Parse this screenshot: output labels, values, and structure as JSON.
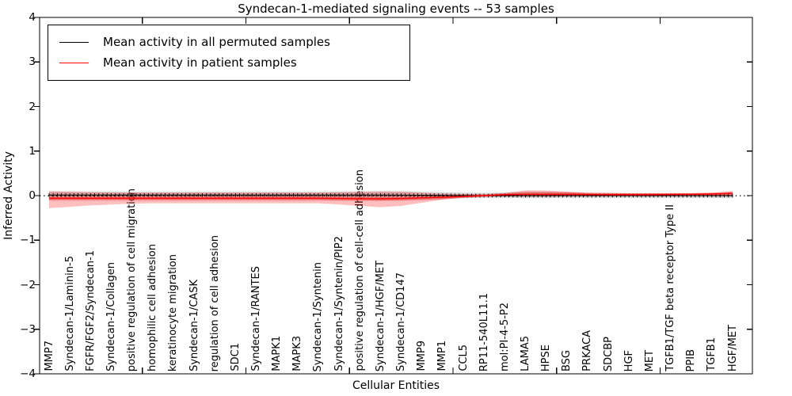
{
  "title": "Syndecan-1-mediated signaling events -- 53 samples",
  "axes": {
    "xlabel": "Cellular Entities",
    "ylabel": "Inferred Activity"
  },
  "legend": {
    "position": "upper left",
    "items": [
      {
        "label": "Mean activity in all permuted samples",
        "color": "#000000"
      },
      {
        "label": "Mean activity in patient samples",
        "color": "#ff0000"
      }
    ]
  },
  "chart_data": {
    "type": "line",
    "title": "Syndecan-1-mediated signaling events -- 53 samples",
    "xlabel": "Cellular Entities",
    "ylabel": "Inferred Activity",
    "ylim": [
      -4,
      4
    ],
    "yticks": [
      4,
      3,
      2,
      1,
      0,
      -1,
      -2,
      -3,
      -4
    ],
    "grid": false,
    "zero_line_style": "dotted",
    "entities": [
      "MMP7",
      "Syndecan-1/Laminin-5",
      "FGFR/FGF2/Syndecan-1",
      "Syndecan-1/Collagen",
      "positive regulation of cell migration",
      "homophilic cell adhesion",
      "keratinocyte migration",
      "Syndecan-1/CASK",
      "regulation of cell adhesion",
      "SDC1",
      "Syndecan-1/RANTES",
      "MAPK1",
      "MAPK3",
      "Syndecan-1/Syntenin",
      "Syndecan-1/Syntenin/PIP2",
      "positive regulation of cell-cell adhesion",
      "Syndecan-1/HGF/MET",
      "Syndecan-1/CD147",
      "MMP9",
      "MMP1",
      "CCL5",
      "RP11-540L11.1",
      "mol:PI-4-5-P2",
      "LAMA5",
      "HPSE",
      "BSG",
      "PRKACA",
      "SDCBP",
      "HGF",
      "MET",
      "TGFB1/TGF beta receptor Type II",
      "PPIB",
      "TGFB1",
      "HGF/MET"
    ],
    "series": [
      {
        "name": "Mean activity in all permuted samples",
        "color": "#000000",
        "values": [
          0.012,
          0.012,
          0.012,
          0.012,
          0.012,
          0.012,
          0.012,
          0.012,
          0.012,
          0.012,
          0.012,
          0.012,
          0.012,
          0.012,
          0.012,
          0.012,
          0.012,
          0.01,
          0.008,
          0.005,
          0.002,
          0.0,
          0.0,
          0.0,
          0.0,
          0.0,
          0.0,
          0.0,
          0.0,
          0.0,
          0.0,
          0.0,
          0.0,
          0.0
        ]
      },
      {
        "name": "Mean activity in patient samples",
        "color": "#ff0000",
        "values": [
          -0.06,
          -0.06,
          -0.06,
          -0.06,
          -0.06,
          -0.06,
          -0.06,
          -0.06,
          -0.06,
          -0.06,
          -0.06,
          -0.06,
          -0.06,
          -0.06,
          -0.065,
          -0.07,
          -0.07,
          -0.065,
          -0.05,
          -0.035,
          -0.02,
          0.0,
          0.02,
          0.03,
          0.03,
          0.03,
          0.025,
          0.02,
          0.02,
          0.02,
          0.025,
          0.03,
          0.035,
          0.05
        ]
      }
    ],
    "bands": [
      {
        "name": "permuted-samples-range",
        "color": "#808080",
        "opacity": 0.35,
        "low": [
          -0.095,
          -0.093,
          -0.09,
          -0.09,
          -0.09,
          -0.09,
          -0.09,
          -0.09,
          -0.09,
          -0.09,
          -0.09,
          -0.09,
          -0.09,
          -0.09,
          -0.095,
          -0.1,
          -0.105,
          -0.1,
          -0.09,
          -0.075,
          -0.06,
          -0.05,
          -0.05,
          -0.055,
          -0.055,
          -0.05,
          -0.05,
          -0.05,
          -0.05,
          -0.05,
          -0.05,
          -0.05,
          -0.05,
          -0.055
        ],
        "high": [
          0.095,
          0.093,
          0.09,
          0.088,
          0.085,
          0.085,
          0.085,
          0.085,
          0.085,
          0.085,
          0.085,
          0.085,
          0.085,
          0.085,
          0.09,
          0.095,
          0.1,
          0.095,
          0.085,
          0.075,
          0.065,
          0.06,
          0.07,
          0.09,
          0.09,
          0.08,
          0.06,
          0.055,
          0.05,
          0.05,
          0.05,
          0.05,
          0.055,
          0.065
        ]
      },
      {
        "name": "patient-samples-range",
        "color": "#ff0000",
        "opacity": 0.25,
        "low": [
          -0.28,
          -0.25,
          -0.22,
          -0.2,
          -0.18,
          -0.17,
          -0.17,
          -0.17,
          -0.17,
          -0.17,
          -0.17,
          -0.17,
          -0.17,
          -0.17,
          -0.2,
          -0.23,
          -0.26,
          -0.23,
          -0.16,
          -0.09,
          -0.045,
          -0.025,
          -0.015,
          -0.02,
          -0.02,
          -0.015,
          -0.01,
          -0.01,
          -0.01,
          -0.01,
          -0.01,
          -0.01,
          -0.01,
          -0.015
        ],
        "high": [
          0.095,
          0.085,
          0.075,
          0.07,
          0.07,
          0.07,
          0.07,
          0.07,
          0.07,
          0.07,
          0.07,
          0.07,
          0.07,
          0.07,
          0.075,
          0.08,
          0.09,
          0.085,
          0.065,
          0.045,
          0.035,
          0.03,
          0.055,
          0.12,
          0.115,
          0.09,
          0.065,
          0.06,
          0.055,
          0.055,
          0.055,
          0.055,
          0.065,
          0.095
        ]
      }
    ]
  }
}
